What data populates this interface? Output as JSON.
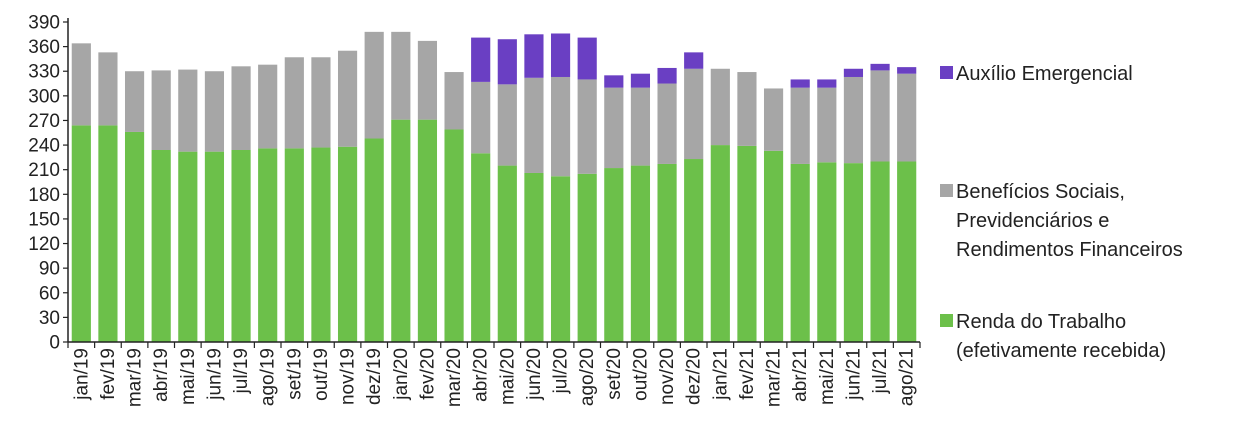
{
  "chart_data": {
    "type": "bar",
    "stacked": true,
    "categories": [
      "jan/19",
      "fev/19",
      "mar/19",
      "abr/19",
      "mai/19",
      "jun/19",
      "jul/19",
      "ago/19",
      "set/19",
      "out/19",
      "nov/19",
      "dez/19",
      "jan/20",
      "fev/20",
      "mar/20",
      "abr/20",
      "mai/20",
      "jun/20",
      "jul/20",
      "ago/20",
      "set/20",
      "out/20",
      "nov/20",
      "dez/20",
      "jan/21",
      "fev/21",
      "mar/21",
      "abr/21",
      "mai/21",
      "jun/21",
      "jul/21",
      "ago/21"
    ],
    "series": [
      {
        "name": "Renda do Trabalho (efetivamente recebida)",
        "color": "#6cc04a",
        "values": [
          264,
          264,
          256,
          234,
          232,
          232,
          234,
          236,
          236,
          237,
          238,
          248,
          271,
          271,
          259,
          230,
          215,
          206,
          202,
          205,
          212,
          215,
          217,
          223,
          240,
          239,
          233,
          217,
          219,
          218,
          220,
          220
        ]
      },
      {
        "name": "Benefícios Sociais, Previdenciários e Rendimentos Financeiros",
        "color": "#a6a6a6",
        "values": [
          100,
          89,
          74,
          97,
          100,
          98,
          102,
          102,
          111,
          110,
          117,
          130,
          107,
          96,
          70,
          87,
          99,
          116,
          121,
          115,
          98,
          95,
          98,
          110,
          93,
          90,
          76,
          93,
          91,
          105,
          111,
          107
        ]
      },
      {
        "name": "Auxílio Emergencial",
        "color": "#6a3fc3",
        "values": [
          0,
          0,
          0,
          0,
          0,
          0,
          0,
          0,
          0,
          0,
          0,
          0,
          0,
          0,
          0,
          54,
          55,
          53,
          53,
          51,
          15,
          17,
          19,
          20,
          0,
          0,
          0,
          10,
          10,
          10,
          8,
          8
        ]
      }
    ],
    "ylim": [
      0,
      390
    ],
    "yticks": [
      "0",
      "30",
      "60",
      "90",
      "120",
      "150",
      "180",
      "210",
      "240",
      "270",
      "300",
      "330",
      "360",
      "390"
    ],
    "legend_position": "right",
    "legend": [
      {
        "lines": [
          "Auxílio Emergencial"
        ],
        "color": "#6a3fc3"
      },
      {
        "lines": [
          "Benefícios Sociais,",
          "Previdenciários e",
          "Rendimentos Financeiros"
        ],
        "color": "#a6a6a6"
      },
      {
        "lines": [
          "Renda do Trabalho",
          "(efetivamente recebida)"
        ],
        "color": "#6cc04a"
      }
    ]
  }
}
